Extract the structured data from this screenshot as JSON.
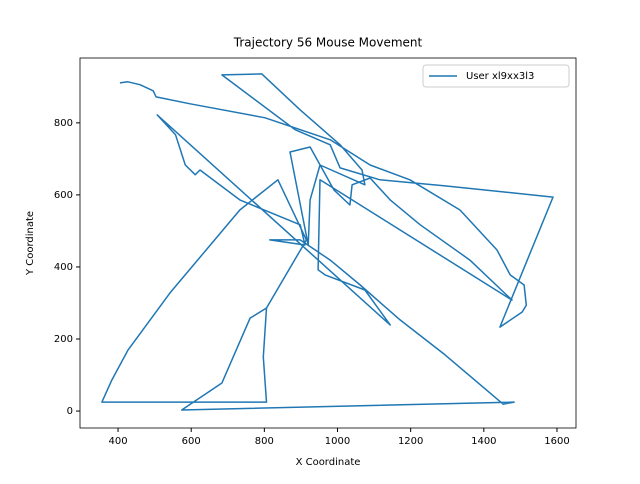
{
  "chart_data": {
    "type": "line",
    "title": "Trajectory 56 Mouse Movement",
    "x_label": "X Coordinate",
    "y_label": "Y Coordinate",
    "xlim": [
      296,
      1652
    ],
    "ylim": [
      -47,
      980
    ],
    "xticks": [
      400,
      600,
      800,
      1000,
      1200,
      1400,
      1600
    ],
    "yticks": [
      0,
      200,
      400,
      600,
      800
    ],
    "grid": false,
    "legend": "upper right",
    "series": [
      {
        "name": "User xl9xx3l3",
        "color": "#1f77b4",
        "x": [
          405,
          427,
          460,
          496,
          504,
          597,
          802,
          980,
          1089,
          1198,
          1335,
          1436,
          1472,
          1510,
          1516,
          1505,
          1444,
          1589,
          1294,
          1116,
          1007,
          980,
          884,
          684,
          793,
          898,
          1007,
          1067,
          1075,
          952,
          925,
          920,
          870,
          925,
          990,
          1034,
          1040,
          1089,
          1144,
          1226,
          1362,
          1477,
          952,
          947,
          966,
          1075,
          1144,
          507,
          557,
          584,
          611,
          624,
          733,
          898,
          911,
          815,
          898,
          980,
          1062,
          1171,
          1294,
          1453,
          1483,
          574,
          684,
          761,
          806,
          915,
          837,
          733,
          542,
          427,
          383,
          356,
          806,
          797,
          806
        ],
        "values": [
          911,
          914,
          906,
          889,
          872,
          853,
          814,
          753,
          683,
          642,
          558,
          447,
          378,
          350,
          294,
          275,
          233,
          594,
          625,
          642,
          675,
          739,
          781,
          933,
          936,
          836,
          739,
          669,
          628,
          683,
          586,
          461,
          719,
          733,
          614,
          572,
          628,
          647,
          586,
          517,
          419,
          308,
          642,
          392,
          378,
          336,
          239,
          822,
          767,
          683,
          656,
          669,
          586,
          517,
          461,
          475,
          475,
          419,
          350,
          253,
          156,
          19,
          25,
          3,
          78,
          258,
          286,
          475,
          642,
          558,
          328,
          169,
          86,
          25,
          25,
          150,
          286
        ]
      }
    ]
  }
}
